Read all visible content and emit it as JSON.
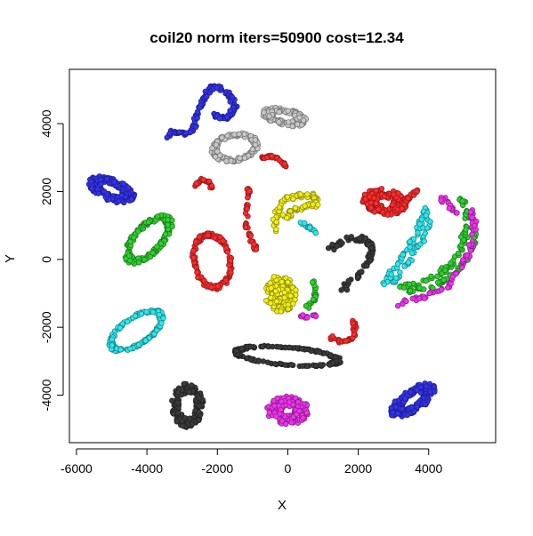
{
  "chart_data": {
    "type": "scatter",
    "title": "coil20 norm iters=50900 cost=12.34",
    "xlabel": "X",
    "ylabel": "Y",
    "xlim": [
      -6200,
      5900
    ],
    "ylim": [
      -5400,
      5600
    ],
    "x_ticks": [
      -6000,
      -4000,
      -2000,
      0,
      2000,
      4000
    ],
    "x_tick_labels": [
      "-6000",
      "-4000",
      "-2000",
      "0",
      "2000",
      "4000"
    ],
    "y_ticks": [
      -4000,
      -2000,
      0,
      2000,
      4000
    ],
    "y_tick_labels": [
      "-4000",
      "-2000",
      "0",
      "2000",
      "4000"
    ],
    "grid": false,
    "legend": "none",
    "marker": "open-circle-filled",
    "colors": {
      "black": "#3a3a3a",
      "red": "#ff2b2b",
      "green": "#2fd12f",
      "blue": "#3333ee",
      "cyan": "#2ee8ee",
      "magenta": "#ee33ee",
      "yellow": "#f2ee19",
      "gray": "#c8c8c8"
    },
    "clusters": [
      {
        "color": "blue",
        "shape": "curve",
        "points": [
          [
            -3400,
            3600
          ],
          [
            -3200,
            3800
          ],
          [
            -2900,
            3700
          ],
          [
            -2650,
            3900
          ],
          [
            -2550,
            4300
          ],
          [
            -2400,
            4700
          ],
          [
            -2250,
            5000
          ],
          [
            -2050,
            5100
          ],
          [
            -1800,
            5000
          ],
          [
            -1600,
            4750
          ],
          [
            -1500,
            4450
          ],
          [
            -1650,
            4200
          ],
          [
            -1900,
            4150
          ],
          [
            -2100,
            4250
          ]
        ],
        "spread": 90,
        "density": 10
      },
      {
        "color": "blue",
        "shape": "ellipse",
        "cx": -5000,
        "cy": 2050,
        "rx": 700,
        "ry": 320,
        "angle": -22,
        "ring": 0.45,
        "n": 170
      },
      {
        "color": "blue",
        "shape": "ellipse",
        "cx": 3550,
        "cy": -4150,
        "rx": 750,
        "ry": 330,
        "angle": 35,
        "ring": 0.45,
        "n": 170
      },
      {
        "color": "gray",
        "shape": "ellipse",
        "cx": -100,
        "cy": 4200,
        "rx": 650,
        "ry": 250,
        "angle": -12,
        "ring": 0.5,
        "n": 150
      },
      {
        "color": "gray",
        "shape": "ellipse",
        "cx": -1500,
        "cy": 3300,
        "rx": 680,
        "ry": 420,
        "angle": 10,
        "ring": 0.75,
        "n": 150
      },
      {
        "color": "red",
        "shape": "curve",
        "points": [
          [
            -750,
            3000
          ],
          [
            -500,
            3050
          ],
          [
            -250,
            2950
          ],
          [
            -50,
            2750
          ]
        ],
        "spread": 50,
        "density": 10
      },
      {
        "color": "red",
        "shape": "curve",
        "points": [
          [
            -2650,
            2150
          ],
          [
            -2450,
            2350
          ],
          [
            -2250,
            2300
          ],
          [
            -2150,
            2100
          ]
        ],
        "spread": 50,
        "density": 10
      },
      {
        "color": "red",
        "shape": "curve",
        "points": [
          [
            -1100,
            2150
          ],
          [
            -1150,
            1600
          ],
          [
            -1200,
            1000
          ],
          [
            -1050,
            600
          ],
          [
            -900,
            300
          ]
        ],
        "spread": 60,
        "density": 10
      },
      {
        "color": "red",
        "shape": "ellipse",
        "cx": -2150,
        "cy": -50,
        "rx": 550,
        "ry": 850,
        "angle": 10,
        "ring": 0.85,
        "n": 150
      },
      {
        "color": "red",
        "shape": "ellipse",
        "cx": 2750,
        "cy": 1700,
        "rx": 650,
        "ry": 380,
        "angle": -10,
        "ring": 0.35,
        "n": 170
      },
      {
        "color": "red",
        "shape": "curve",
        "points": [
          [
            1200,
            -2300
          ],
          [
            1500,
            -2400
          ],
          [
            1850,
            -2350
          ],
          [
            1900,
            -2000
          ],
          [
            1850,
            -1800
          ]
        ],
        "spread": 60,
        "density": 10
      },
      {
        "color": "red",
        "shape": "curve",
        "points": [
          [
            3350,
            1750
          ],
          [
            3500,
            1900
          ],
          [
            3700,
            2000
          ]
        ],
        "spread": 60,
        "density": 10
      },
      {
        "color": "yellow",
        "shape": "curve",
        "points": [
          [
            -350,
            850
          ],
          [
            -300,
            1400
          ],
          [
            -100,
            1800
          ],
          [
            300,
            1900
          ],
          [
            750,
            1850
          ],
          [
            850,
            1650
          ],
          [
            500,
            1550
          ],
          [
            150,
            1450
          ],
          [
            -100,
            1200
          ]
        ],
        "spread": 110,
        "density": 14
      },
      {
        "color": "yellow",
        "shape": "ellipse",
        "cx": -200,
        "cy": -1000,
        "rx": 450,
        "ry": 550,
        "angle": 0,
        "ring": 0.2,
        "n": 170
      },
      {
        "color": "cyan",
        "shape": "ellipse",
        "cx": -4300,
        "cy": -2100,
        "rx": 900,
        "ry": 420,
        "angle": 35,
        "ring": 0.85,
        "n": 170
      },
      {
        "color": "cyan",
        "shape": "curve",
        "points": [
          [
            300,
            1100
          ],
          [
            600,
            950
          ],
          [
            800,
            800
          ]
        ],
        "spread": 50,
        "density": 8
      },
      {
        "color": "cyan",
        "shape": "curve",
        "points": [
          [
            2650,
            -850
          ],
          [
            3000,
            -300
          ],
          [
            3400,
            300
          ],
          [
            3750,
            950
          ],
          [
            3950,
            1550
          ]
        ],
        "spread": 110,
        "density": 14
      },
      {
        "color": "cyan",
        "shape": "curve",
        "points": [
          [
            3000,
            -700
          ],
          [
            3400,
            -150
          ],
          [
            3800,
            500
          ],
          [
            4050,
            1150
          ]
        ],
        "spread": 90,
        "density": 12
      },
      {
        "color": "green",
        "shape": "ellipse",
        "cx": -3950,
        "cy": 600,
        "rx": 900,
        "ry": 430,
        "angle": 48,
        "ring": 0.75,
        "n": 170
      },
      {
        "color": "green",
        "shape": "curve",
        "points": [
          [
            700,
            -600
          ],
          [
            800,
            -900
          ],
          [
            750,
            -1200
          ],
          [
            550,
            -1400
          ]
        ],
        "spread": 60,
        "density": 8
      },
      {
        "color": "green",
        "shape": "curve",
        "points": [
          [
            3200,
            -800
          ],
          [
            4000,
            -600
          ],
          [
            4600,
            -200
          ],
          [
            5000,
            500
          ],
          [
            5100,
            1300
          ],
          [
            4900,
            1900
          ]
        ],
        "spread": 130,
        "density": 16
      },
      {
        "color": "green",
        "shape": "curve",
        "points": [
          [
            3300,
            -1000
          ],
          [
            4100,
            -800
          ],
          [
            4800,
            -400
          ],
          [
            5250,
            300
          ],
          [
            5300,
            1100
          ]
        ],
        "spread": 110,
        "density": 14
      },
      {
        "color": "magenta",
        "shape": "curve",
        "points": [
          [
            3100,
            -1300
          ],
          [
            3900,
            -1100
          ],
          [
            4600,
            -700
          ],
          [
            5100,
            100
          ],
          [
            5300,
            900
          ],
          [
            5200,
            1500
          ]
        ],
        "spread": 100,
        "density": 14
      },
      {
        "color": "magenta",
        "shape": "curve",
        "points": [
          [
            4300,
            1900
          ],
          [
            4600,
            1600
          ],
          [
            4850,
            1300
          ]
        ],
        "spread": 90,
        "density": 8
      },
      {
        "color": "magenta",
        "shape": "curve",
        "points": [
          [
            350,
            -1650
          ],
          [
            550,
            -1700
          ],
          [
            800,
            -1650
          ]
        ],
        "spread": 60,
        "density": 5
      },
      {
        "color": "magenta",
        "shape": "ellipse",
        "cx": 0,
        "cy": -4450,
        "rx": 600,
        "ry": 420,
        "angle": 0,
        "ring": 0.3,
        "n": 170
      },
      {
        "color": "black",
        "shape": "curve",
        "points": [
          [
            1200,
            300
          ],
          [
            1700,
            600
          ],
          [
            2200,
            600
          ],
          [
            2400,
            400
          ],
          [
            2350,
            0
          ],
          [
            2000,
            -500
          ],
          [
            1500,
            -900
          ]
        ],
        "spread": 110,
        "density": 13
      },
      {
        "color": "black",
        "shape": "ellipse",
        "cx": 0,
        "cy": -2850,
        "rx": 1550,
        "ry": 280,
        "angle": -5,
        "ring": 0.85,
        "n": 160
      },
      {
        "color": "black",
        "shape": "ellipse",
        "cx": -2850,
        "cy": -4300,
        "rx": 450,
        "ry": 650,
        "angle": 0,
        "ring": 0.55,
        "n": 150
      }
    ]
  }
}
